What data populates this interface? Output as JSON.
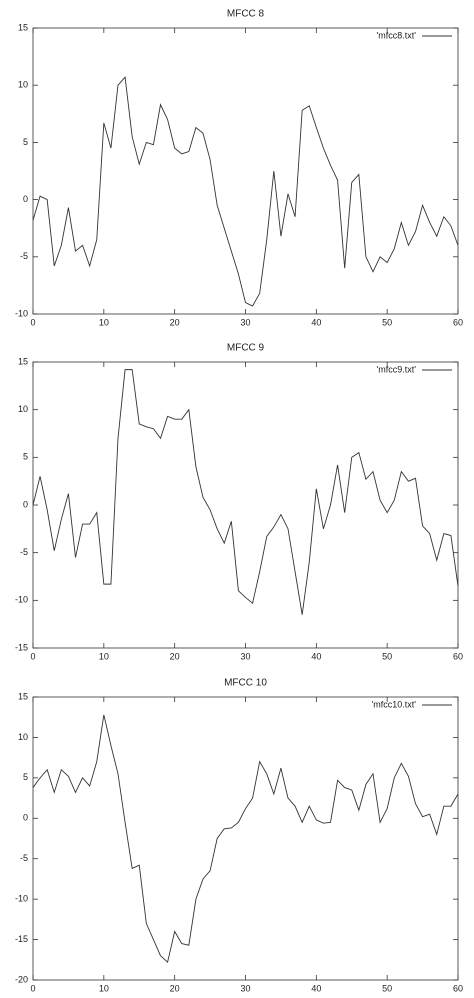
{
  "chart_data": [
    {
      "type": "line",
      "title": "MFCC 8",
      "x": [
        0,
        1,
        2,
        3,
        4,
        5,
        6,
        7,
        8,
        9,
        10,
        11,
        12,
        13,
        14,
        15,
        16,
        17,
        18,
        19,
        20,
        21,
        22,
        23,
        24,
        25,
        26,
        27,
        28,
        29,
        30,
        31,
        32,
        33,
        34,
        35,
        36,
        37,
        38,
        39,
        40,
        41,
        42,
        43,
        44,
        45,
        46,
        47,
        48,
        49,
        50,
        51,
        52,
        53,
        54,
        55,
        56,
        57,
        58,
        59,
        60
      ],
      "series": [
        {
          "name": "'mfcc8.txt'",
          "color": "#333333",
          "values": [
            -1.8,
            0.3,
            0,
            -5.8,
            -4,
            -0.7,
            -4.5,
            -4,
            -5.8,
            -3.5,
            6.7,
            4.5,
            10,
            10.7,
            5.5,
            3.1,
            5,
            4.8,
            8.3,
            7,
            4.5,
            4,
            4.2,
            6.3,
            5.8,
            3.5,
            -0.5,
            -2.5,
            -4.5,
            -6.5,
            -9,
            -9.3,
            -8.2,
            -3.5,
            2.5,
            -3.2,
            0.5,
            -1.5,
            7.8,
            8.2,
            6.3,
            4.5,
            3,
            1.7,
            -6,
            1.5,
            2.2,
            -5,
            -6.3,
            -5,
            -5.5,
            -4.3,
            -2,
            -4,
            -2.8,
            -0.5,
            -2,
            -3.2,
            -1.5,
            -2.3,
            -4
          ]
        }
      ],
      "xlim": [
        0,
        60
      ],
      "xticks": [
        0,
        10,
        20,
        30,
        40,
        50,
        60
      ],
      "ylim": [
        -10,
        15
      ],
      "yticks": [
        -10,
        -5,
        0,
        5,
        10,
        15
      ],
      "legend": "top-right"
    },
    {
      "type": "line",
      "title": "MFCC 9",
      "x": [
        0,
        1,
        2,
        3,
        4,
        5,
        6,
        7,
        8,
        9,
        10,
        11,
        12,
        13,
        14,
        15,
        16,
        17,
        18,
        19,
        20,
        21,
        22,
        23,
        24,
        25,
        26,
        27,
        28,
        29,
        30,
        31,
        32,
        33,
        34,
        35,
        36,
        37,
        38,
        39,
        40,
        41,
        42,
        43,
        44,
        45,
        46,
        47,
        48,
        49,
        50,
        51,
        52,
        53,
        54,
        55,
        56,
        57,
        58,
        59,
        60
      ],
      "series": [
        {
          "name": "'mfcc9.txt'",
          "color": "#333333",
          "values": [
            0,
            3,
            -0.5,
            -4.8,
            -1.5,
            1.2,
            -5.5,
            -2,
            -2,
            -0.8,
            -8.3,
            -8.3,
            7,
            14.2,
            14.2,
            8.5,
            8.2,
            8,
            7,
            9.3,
            9,
            9,
            10,
            4,
            0.8,
            -0.5,
            -2.5,
            -4,
            -1.7,
            -9,
            -9.7,
            -10.3,
            -7,
            -3.3,
            -2.3,
            -1,
            -2.5,
            -7,
            -11.5,
            -6,
            1.7,
            -2.5,
            0,
            4.2,
            -0.8,
            5,
            5.5,
            2.7,
            3.5,
            0.5,
            -0.8,
            0.5,
            3.5,
            2.5,
            2.8,
            -2.2,
            -3,
            -5.8,
            -3,
            -3.2,
            -8.5
          ]
        }
      ],
      "xlim": [
        0,
        60
      ],
      "xticks": [
        0,
        10,
        20,
        30,
        40,
        50,
        60
      ],
      "ylim": [
        -15,
        15
      ],
      "yticks": [
        -15,
        -10,
        -5,
        0,
        5,
        10,
        15
      ],
      "legend": "top-right"
    },
    {
      "type": "line",
      "title": "MFCC 10",
      "x": [
        0,
        1,
        2,
        3,
        4,
        5,
        6,
        7,
        8,
        9,
        10,
        11,
        12,
        13,
        14,
        15,
        16,
        17,
        18,
        19,
        20,
        21,
        22,
        23,
        24,
        25,
        26,
        27,
        28,
        29,
        30,
        31,
        32,
        33,
        34,
        35,
        36,
        37,
        38,
        39,
        40,
        41,
        42,
        43,
        44,
        45,
        46,
        47,
        48,
        49,
        50,
        51,
        52,
        53,
        54,
        55,
        56,
        57,
        58,
        59,
        60
      ],
      "series": [
        {
          "name": "'mfcc10.txt'",
          "color": "#333333",
          "values": [
            3.8,
            5,
            6,
            3.2,
            6,
            5.2,
            3.2,
            5,
            4,
            7,
            12.8,
            9,
            5.5,
            -0.5,
            -6.2,
            -5.8,
            -13,
            -15,
            -17,
            -17.8,
            -14,
            -15.5,
            -15.7,
            -10,
            -7.5,
            -6.5,
            -2.5,
            -1.3,
            -1.2,
            -0.5,
            1.2,
            2.5,
            7,
            5.5,
            3,
            6.2,
            2.5,
            1.5,
            -0.5,
            1.5,
            -0.2,
            -0.6,
            -0.5,
            4.7,
            3.8,
            3.5,
            1,
            4.2,
            5.5,
            -0.5,
            1.2,
            5,
            6.8,
            5.2,
            1.8,
            0.2,
            0.5,
            -2,
            1.5,
            1.5,
            3
          ]
        }
      ],
      "xlim": [
        0,
        60
      ],
      "xticks": [
        0,
        10,
        20,
        30,
        40,
        50,
        60
      ],
      "ylim": [
        -20,
        15
      ],
      "yticks": [
        -20,
        -15,
        -10,
        -5,
        0,
        5,
        10,
        15
      ],
      "legend": "top-right"
    }
  ]
}
